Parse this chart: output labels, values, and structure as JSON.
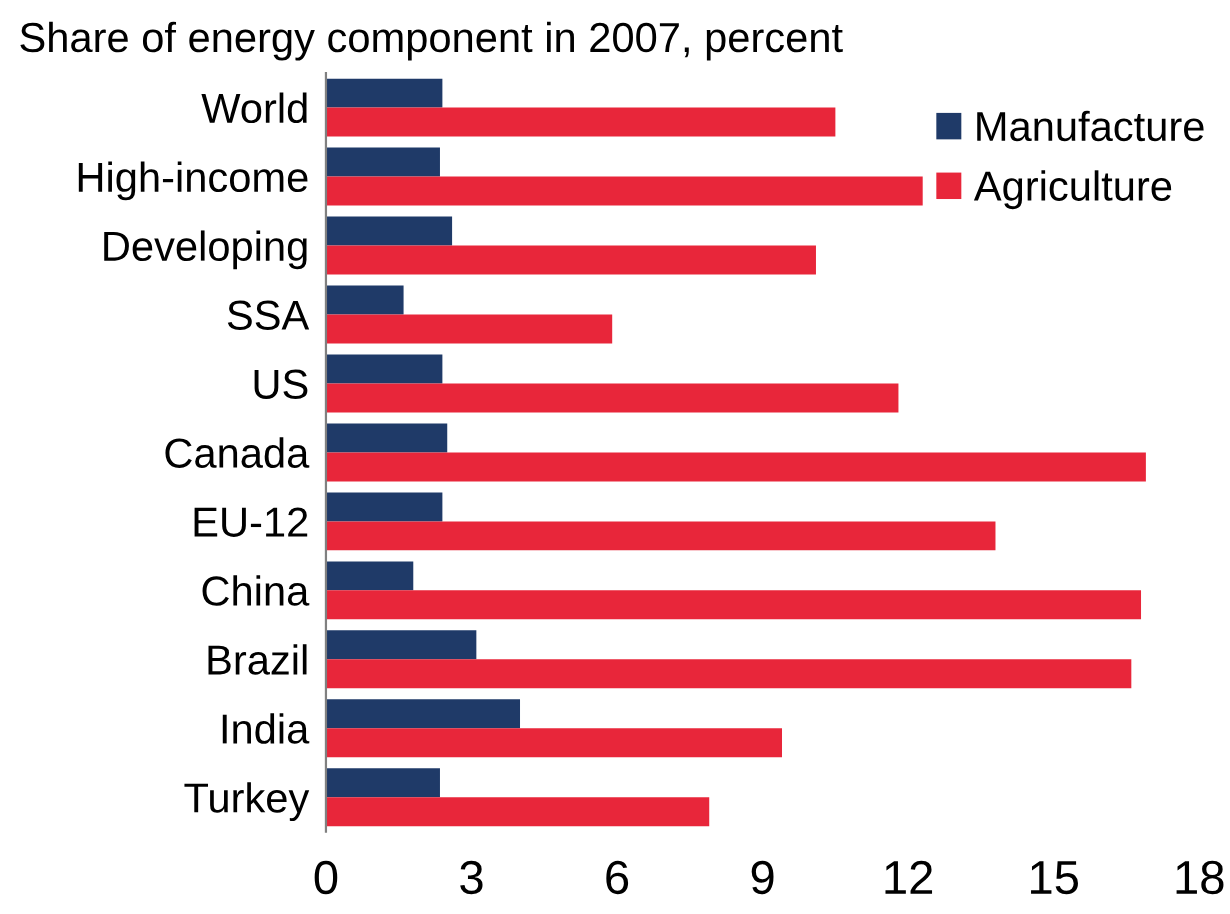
{
  "chart_data": {
    "type": "bar",
    "orientation": "horizontal",
    "title": "Share of energy component in 2007, percent",
    "categories": [
      "World",
      "High-income",
      "Developing",
      "SSA",
      "US",
      "Canada",
      "EU-12",
      "China",
      "Brazil",
      "India",
      "Turkey"
    ],
    "series": [
      {
        "name": "Manufacture",
        "color": "#1f3a68",
        "values": [
          2.4,
          2.35,
          2.6,
          1.6,
          2.4,
          2.5,
          2.4,
          1.8,
          3.1,
          4.0,
          2.35
        ]
      },
      {
        "name": "Agriculture",
        "color": "#e8263a",
        "values": [
          10.5,
          12.3,
          10.1,
          5.9,
          11.8,
          16.9,
          13.8,
          16.8,
          16.6,
          9.4,
          7.9
        ]
      }
    ],
    "xlim": [
      0,
      18
    ],
    "xticks": [
      0,
      3,
      6,
      9,
      12,
      15,
      18
    ],
    "grid": false,
    "legend": "top right"
  }
}
